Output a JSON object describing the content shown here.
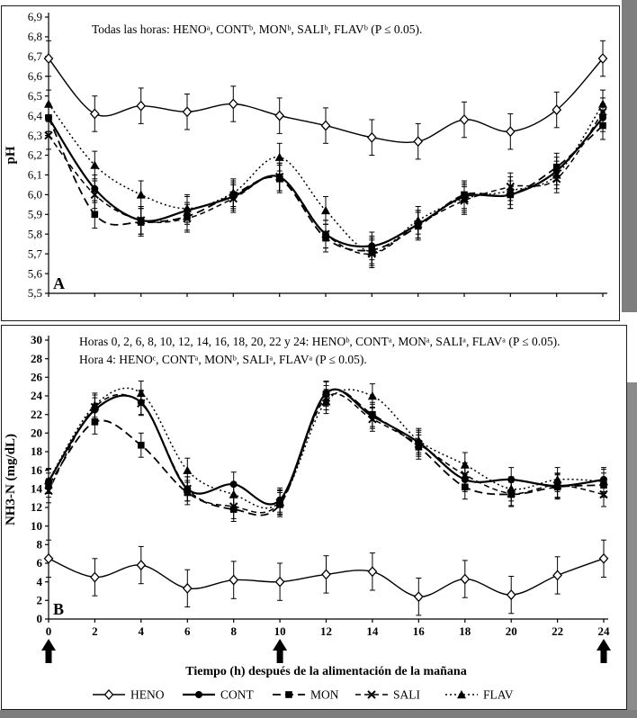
{
  "figure": {
    "background": "#ffffff",
    "edge_gray": "#7e7e7e",
    "ink": "#000000"
  },
  "chart_data": [
    {
      "id": "chartA",
      "type": "line",
      "panel_label": "A",
      "ylabel": "pH",
      "xlabel": "",
      "xlim": [
        0,
        24
      ],
      "ylim": [
        5.5,
        6.9
      ],
      "grid": false,
      "legend_position": "none",
      "annotations": [
        "Todas las horas: HENOᵃ, CONTᵇ, MONᵇ, SALIᵇ, FLAVᵇ (P ≤ 0.05)."
      ],
      "x": [
        0,
        2,
        4,
        6,
        8,
        10,
        12,
        14,
        16,
        18,
        20,
        22,
        24
      ],
      "xticks": [
        0,
        2,
        4,
        6,
        8,
        10,
        12,
        14,
        16,
        18,
        20,
        22,
        24
      ],
      "xtick_labels": [],
      "ytick_vals": [
        5.5,
        5.6,
        5.7,
        5.8,
        5.9,
        6.0,
        6.1,
        6.2,
        6.3,
        6.4,
        6.5,
        6.6,
        6.7,
        6.8,
        6.9
      ],
      "ytick_labels": [
        "5,5",
        "5,6",
        "5,7",
        "5,8",
        "5,9",
        "6,0",
        "6,1",
        "6,2",
        "6,3",
        "6,4",
        "6,5",
        "6,6",
        "6,7",
        "6,8",
        "6,9"
      ],
      "series": [
        {
          "name": "HENO",
          "marker": "open-diamond",
          "dash": "",
          "line_width": 1.4,
          "error": 0.09,
          "values": [
            6.69,
            6.41,
            6.45,
            6.42,
            6.46,
            6.4,
            6.35,
            6.29,
            6.27,
            6.38,
            6.32,
            6.43,
            6.69
          ]
        },
        {
          "name": "CONT",
          "marker": "filled-circle",
          "dash": "",
          "line_width": 2.2,
          "error": 0.07,
          "values": [
            6.39,
            6.03,
            5.87,
            5.92,
            5.99,
            6.09,
            5.8,
            5.74,
            5.85,
            5.99,
            6.0,
            6.12,
            6.39
          ]
        },
        {
          "name": "MON",
          "marker": "filled-square",
          "dash": "9,5",
          "line_width": 1.8,
          "error": 0.07,
          "values": [
            6.39,
            5.9,
            5.86,
            5.89,
            6.0,
            6.08,
            5.78,
            5.72,
            5.84,
            6.0,
            6.0,
            6.14,
            6.35
          ]
        },
        {
          "name": "SALI",
          "marker": "x-cross",
          "dash": "6,4",
          "line_width": 1.5,
          "error": 0.07,
          "values": [
            6.3,
            6.0,
            5.87,
            5.88,
            5.98,
            6.09,
            5.8,
            5.7,
            5.85,
            5.97,
            6.04,
            6.08,
            6.42
          ]
        },
        {
          "name": "FLAV",
          "marker": "filled-triangle",
          "dash": "2,3",
          "line_width": 1.5,
          "error": 0.07,
          "values": [
            6.46,
            6.15,
            6.0,
            5.93,
            6.01,
            6.19,
            5.92,
            5.71,
            5.87,
            5.98,
            6.02,
            6.1,
            6.46
          ]
        }
      ]
    },
    {
      "id": "chartB",
      "type": "line",
      "panel_label": "B",
      "ylabel": "NH3-N (mg/dL)",
      "xlabel": "Tiempo (h) después de la alimentación de la mañana",
      "xlim": [
        0,
        24
      ],
      "ylim": [
        0,
        30
      ],
      "grid": false,
      "legend_position": "bottom",
      "annotations": [
        "Horas  0, 2, 6, 8, 10, 12, 14, 16, 18, 20, 22 y 24: HENOᵇ, CONTᵃ, MONᵃ, SALIᵃ, FLAVᵃ (P ≤ 0.05).",
        "Hora 4: HENOᶜ, CONTᵃ, MONᵇ, SALIᵃ, FLAVᵃ (P ≤ 0.05)."
      ],
      "x": [
        0,
        2,
        4,
        6,
        8,
        10,
        12,
        14,
        16,
        18,
        20,
        22,
        24
      ],
      "xticks": [
        0,
        2,
        4,
        6,
        8,
        10,
        12,
        14,
        16,
        18,
        20,
        22,
        24
      ],
      "xtick_labels": [
        "0",
        "2",
        "4",
        "6",
        "8",
        "10",
        "12",
        "14",
        "16",
        "18",
        "20",
        "22",
        "24"
      ],
      "ytick_vals": [
        0,
        2,
        4,
        6,
        8,
        10,
        12,
        14,
        16,
        18,
        20,
        22,
        24,
        26,
        28,
        30
      ],
      "ytick_labels": [
        "0",
        "2",
        "4",
        "6",
        "8",
        "10",
        "12",
        "14",
        "16",
        "18",
        "20",
        "22",
        "24",
        "26",
        "28",
        "30"
      ],
      "feed_arrow_hours": [
        0,
        10,
        24
      ],
      "series": [
        {
          "name": "HENO",
          "marker": "open-diamond",
          "dash": "",
          "line_width": 1.4,
          "error": 2.0,
          "values": [
            6.5,
            4.5,
            5.8,
            3.3,
            4.2,
            4.0,
            4.8,
            5.1,
            2.4,
            4.3,
            2.6,
            4.7,
            6.5
          ]
        },
        {
          "name": "CONT",
          "marker": "filled-circle",
          "dash": "",
          "line_width": 2.2,
          "error": 1.3,
          "values": [
            14.8,
            22.5,
            23.3,
            14.0,
            14.5,
            12.8,
            24.3,
            21.8,
            19.0,
            15.0,
            15.0,
            14.3,
            15.0
          ]
        },
        {
          "name": "MON",
          "marker": "filled-square",
          "dash": "9,5",
          "line_width": 1.8,
          "error": 1.3,
          "values": [
            14.4,
            21.2,
            18.7,
            13.6,
            11.8,
            12.3,
            24.2,
            22.0,
            18.5,
            14.2,
            13.4,
            14.2,
            14.4
          ]
        },
        {
          "name": "SALI",
          "marker": "x-cross",
          "dash": "6,4",
          "line_width": 1.5,
          "error": 1.3,
          "values": [
            13.8,
            22.8,
            23.2,
            14.0,
            12.1,
            12.5,
            23.8,
            21.5,
            18.8,
            15.5,
            13.5,
            14.4,
            13.4
          ]
        },
        {
          "name": "FLAV",
          "marker": "filled-triangle",
          "dash": "2,3",
          "line_width": 1.5,
          "error": 1.3,
          "values": [
            14.9,
            23.0,
            24.3,
            16.0,
            13.4,
            12.6,
            23.4,
            24.0,
            19.2,
            16.6,
            14.0,
            15.0,
            14.8
          ]
        }
      ]
    }
  ],
  "legend": {
    "items": [
      "HENO",
      "CONT",
      "MON",
      "SALI",
      "FLAV"
    ]
  }
}
